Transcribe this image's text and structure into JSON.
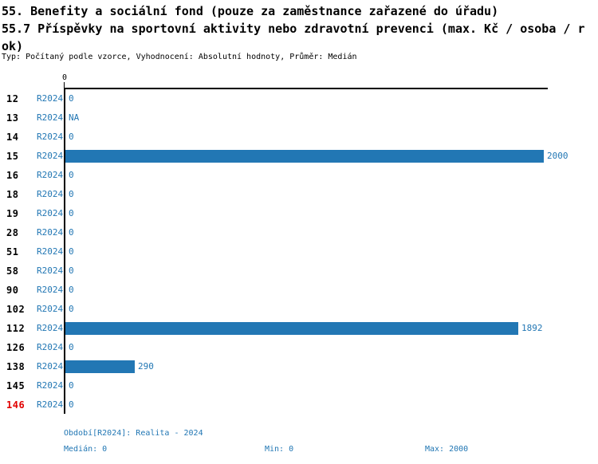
{
  "header": {
    "title_line1": "55. Benefity a sociální fond (pouze za zaměstnance zařazené do úřadu)",
    "title_line2": "55.7 Příspěvky na sportovní aktivity nebo zdravotní prevenci (max. Kč / osoba / r",
    "title_line3": "ok)",
    "subtitle": "Typ: Počítaný podle vzorce, Vyhodnocení: Absolutní hodnoty, Průměr: Medián"
  },
  "chart_data": {
    "type": "bar",
    "orientation": "horizontal",
    "title": "55.7 Příspěvky na sportovní aktivity nebo zdravotní prevenci (max. Kč / osoba / rok)",
    "series_label": "R2024",
    "categories": [
      "12",
      "13",
      "14",
      "15",
      "16",
      "18",
      "19",
      "28",
      "51",
      "58",
      "90",
      "102",
      "112",
      "126",
      "138",
      "145",
      "146"
    ],
    "values": [
      0,
      null,
      0,
      2000,
      0,
      0,
      0,
      0,
      0,
      0,
      0,
      0,
      1892,
      0,
      290,
      0,
      0
    ],
    "value_labels": [
      "0",
      "NA",
      "0",
      "2000",
      "0",
      "0",
      "0",
      "0",
      "0",
      "0",
      "0",
      "0",
      "1892",
      "0",
      "290",
      "0",
      "0"
    ],
    "highlighted_category": "146",
    "x_axis": {
      "position": "top",
      "tick_labels": [
        "0"
      ],
      "range": [
        0,
        2000
      ]
    },
    "grid": false,
    "legend_position": "none"
  },
  "axis": {
    "tick_zero": "0"
  },
  "footer": {
    "period": "Období[R2024]: Realita - 2024",
    "median": "Medián: 0",
    "min": "Min: 0",
    "max": "Max: 2000"
  },
  "colors": {
    "bar": "#2277b4",
    "blue_text": "#2277b4",
    "highlight_red": "#e10000",
    "axis_black": "#000000",
    "background": "#ffffff"
  }
}
